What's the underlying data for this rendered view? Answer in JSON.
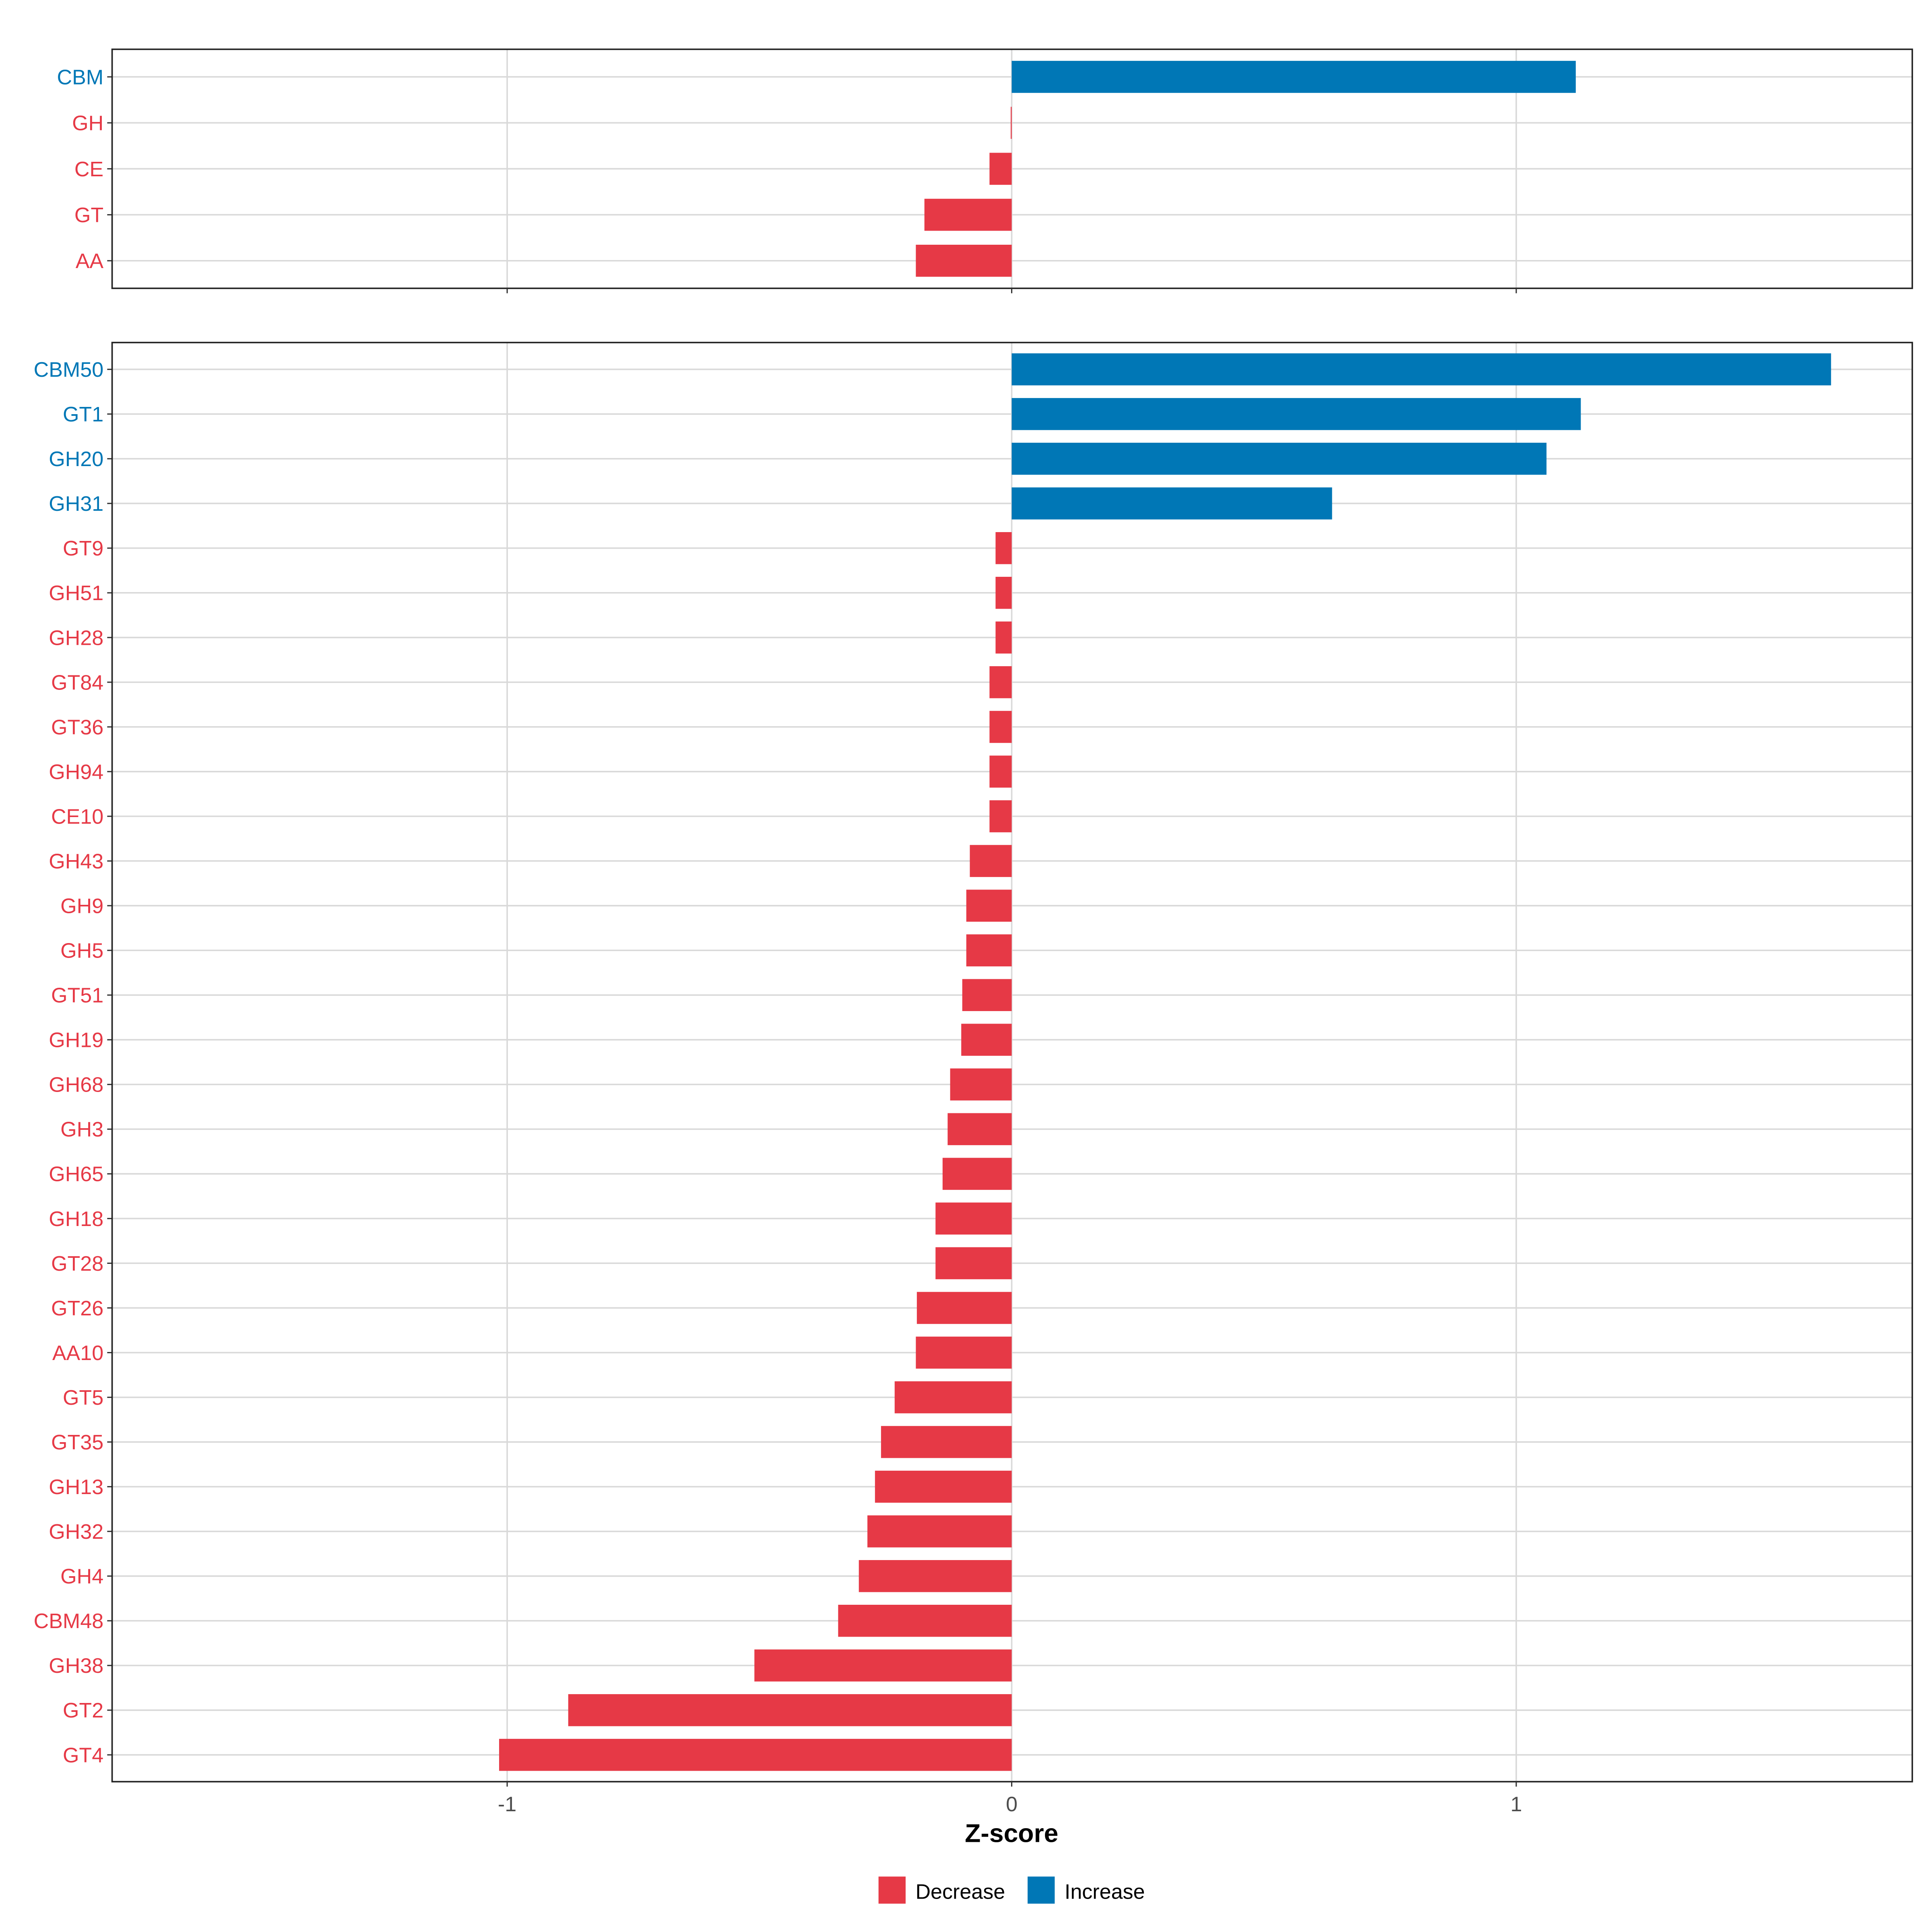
{
  "chart_data": [
    {
      "type": "bar",
      "orientation": "horizontal",
      "panel": "top",
      "categories": [
        "CBM",
        "GH",
        "CE",
        "GT",
        "AA"
      ],
      "values": [
        1.118,
        -0.002,
        -0.044,
        -0.173,
        -0.19
      ],
      "xlim": [
        -1.783,
        1.785
      ],
      "grid": true
    },
    {
      "type": "bar",
      "orientation": "horizontal",
      "panel": "bottom",
      "categories": [
        "CBM50",
        "GT1",
        "GH20",
        "GH31",
        "GT9",
        "GH51",
        "GH28",
        "GT84",
        "GT36",
        "GH94",
        "CE10",
        "GH43",
        "GH9",
        "GH5",
        "GT51",
        "GH19",
        "GH68",
        "GH3",
        "GH65",
        "GH18",
        "GT28",
        "GT26",
        "AA10",
        "GT5",
        "GT35",
        "GH13",
        "GH32",
        "GH4",
        "CBM48",
        "GH38",
        "GT2",
        "GT4"
      ],
      "values": [
        1.624,
        1.128,
        1.06,
        0.635,
        -0.032,
        -0.032,
        -0.032,
        -0.044,
        -0.044,
        -0.044,
        -0.044,
        -0.083,
        -0.09,
        -0.09,
        -0.098,
        -0.1,
        -0.122,
        -0.127,
        -0.137,
        -0.151,
        -0.151,
        -0.188,
        -0.19,
        -0.232,
        -0.259,
        -0.271,
        -0.286,
        -0.303,
        -0.344,
        -0.51,
        -0.879,
        -1.016
      ],
      "xlim": [
        -1.783,
        1.785
      ],
      "xticks": [
        -1,
        0,
        1
      ],
      "xtick_labels": [
        "-1",
        "0",
        "1"
      ],
      "xlabel": "Z-score",
      "grid": true
    }
  ],
  "legend": {
    "placement": "bottom",
    "items": [
      {
        "label": "Decrease",
        "color": "#E63946"
      },
      {
        "label": "Increase",
        "color": "#0077B6"
      }
    ]
  }
}
